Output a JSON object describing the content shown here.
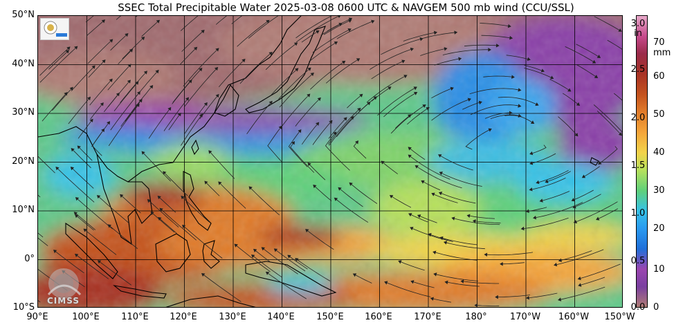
{
  "title": "SSEC Total Precipitable Water  2025-03-08 0600 UTC & NAVGEM 500 mb wind (CCU/SSL)",
  "map": {
    "lat_labels": [
      "50°N",
      "40°N",
      "30°N",
      "20°N",
      "10°N",
      "0°",
      "10°S"
    ],
    "lon_labels": [
      "90°E",
      "100°E",
      "110°E",
      "120°E",
      "130°E",
      "140°E",
      "150°E",
      "160°E",
      "170°E",
      "180°",
      "170°W",
      "160°W",
      "150°W"
    ],
    "lat_range": [
      -10,
      50
    ],
    "lon_range": [
      90,
      210
    ]
  },
  "colorbar": {
    "inch_unit": "in",
    "mm_unit": "mm",
    "inch_ticks": [
      "3.0",
      "2.5",
      "2.0",
      "1.5",
      "1.0",
      "0.5",
      "0.0"
    ],
    "mm_ticks": [
      "70",
      "60",
      "50",
      "40",
      "30",
      "20",
      "10",
      "0"
    ],
    "range_mm": [
      0,
      76
    ],
    "colors": [
      "#b07c74",
      "#7a3fa0",
      "#9a46b0",
      "#1f6fd9",
      "#2a9af0",
      "#36c2e8",
      "#5fd07a",
      "#b6e05c",
      "#f2d34a",
      "#f5a53a",
      "#e07b2a",
      "#c4521e",
      "#a83224",
      "#9a2b4a",
      "#c64a8c",
      "#e7a9c9"
    ]
  },
  "logos": {
    "bottom_label": "CIMSS"
  },
  "colors": {
    "land_outline": "#000000",
    "grid": "#000000",
    "wind_streamline": "#222222"
  }
}
